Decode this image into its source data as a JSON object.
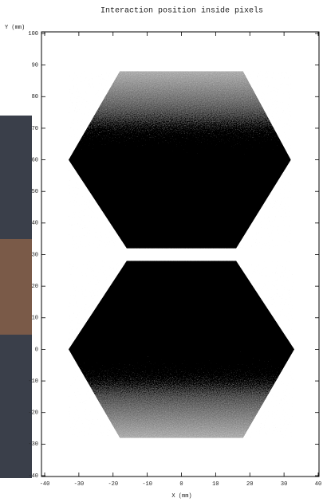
{
  "chart_data": {
    "type": "scatter",
    "title": "Interaction position inside pixels",
    "x_label": "X (mm)",
    "y_label": "Y (mm)",
    "series": [
      {
        "x": [
          -16,
          16,
          32,
          18,
          -18,
          -33
        ],
        "y": [
          32,
          32,
          60,
          88,
          88,
          60
        ],
        "color": "#000000"
      },
      {
        "x": [
          -16,
          16,
          33,
          18,
          -18,
          -33
        ],
        "y": [
          28,
          28,
          0,
          -28,
          -28,
          0
        ],
        "color": "#000000"
      }
    ],
    "xlim": [
      -40,
      40
    ],
    "xticks": [
      -40,
      -30,
      -20,
      -10,
      0,
      10,
      20,
      30,
      40
    ],
    "ylim": [
      -40,
      100
    ],
    "yticks": [
      -40,
      -30,
      -20,
      -10,
      0,
      10,
      20,
      30,
      40,
      50,
      60,
      70,
      80,
      90,
      100
    ]
  }
}
